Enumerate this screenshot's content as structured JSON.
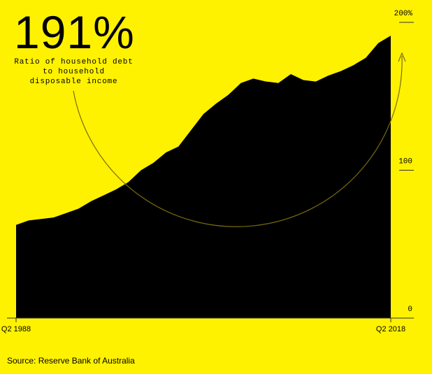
{
  "chart_data": {
    "type": "area",
    "title": "191%",
    "subtitle": [
      "Ratio of household debt",
      "to household",
      "disposable income"
    ],
    "source": "Source: Reserve Bank of Australia",
    "categories": [
      "Q2 1988",
      null,
      null,
      null,
      null,
      null,
      null,
      null,
      null,
      null,
      null,
      null,
      null,
      null,
      null,
      null,
      null,
      null,
      null,
      null,
      null,
      null,
      null,
      null,
      null,
      null,
      null,
      null,
      null,
      null,
      "Q2 2018"
    ],
    "values": [
      63,
      66,
      67,
      68,
      71,
      74,
      79,
      83,
      87,
      92,
      100,
      105,
      112,
      116,
      127,
      138,
      145,
      151,
      159,
      162,
      160,
      159,
      165,
      161,
      160,
      164,
      167,
      171,
      176,
      186,
      191
    ],
    "color": "#000000",
    "ylim": [
      0,
      200
    ],
    "yticks": [
      0,
      100,
      {
        "value": 200,
        "label": "200%"
      }
    ]
  }
}
